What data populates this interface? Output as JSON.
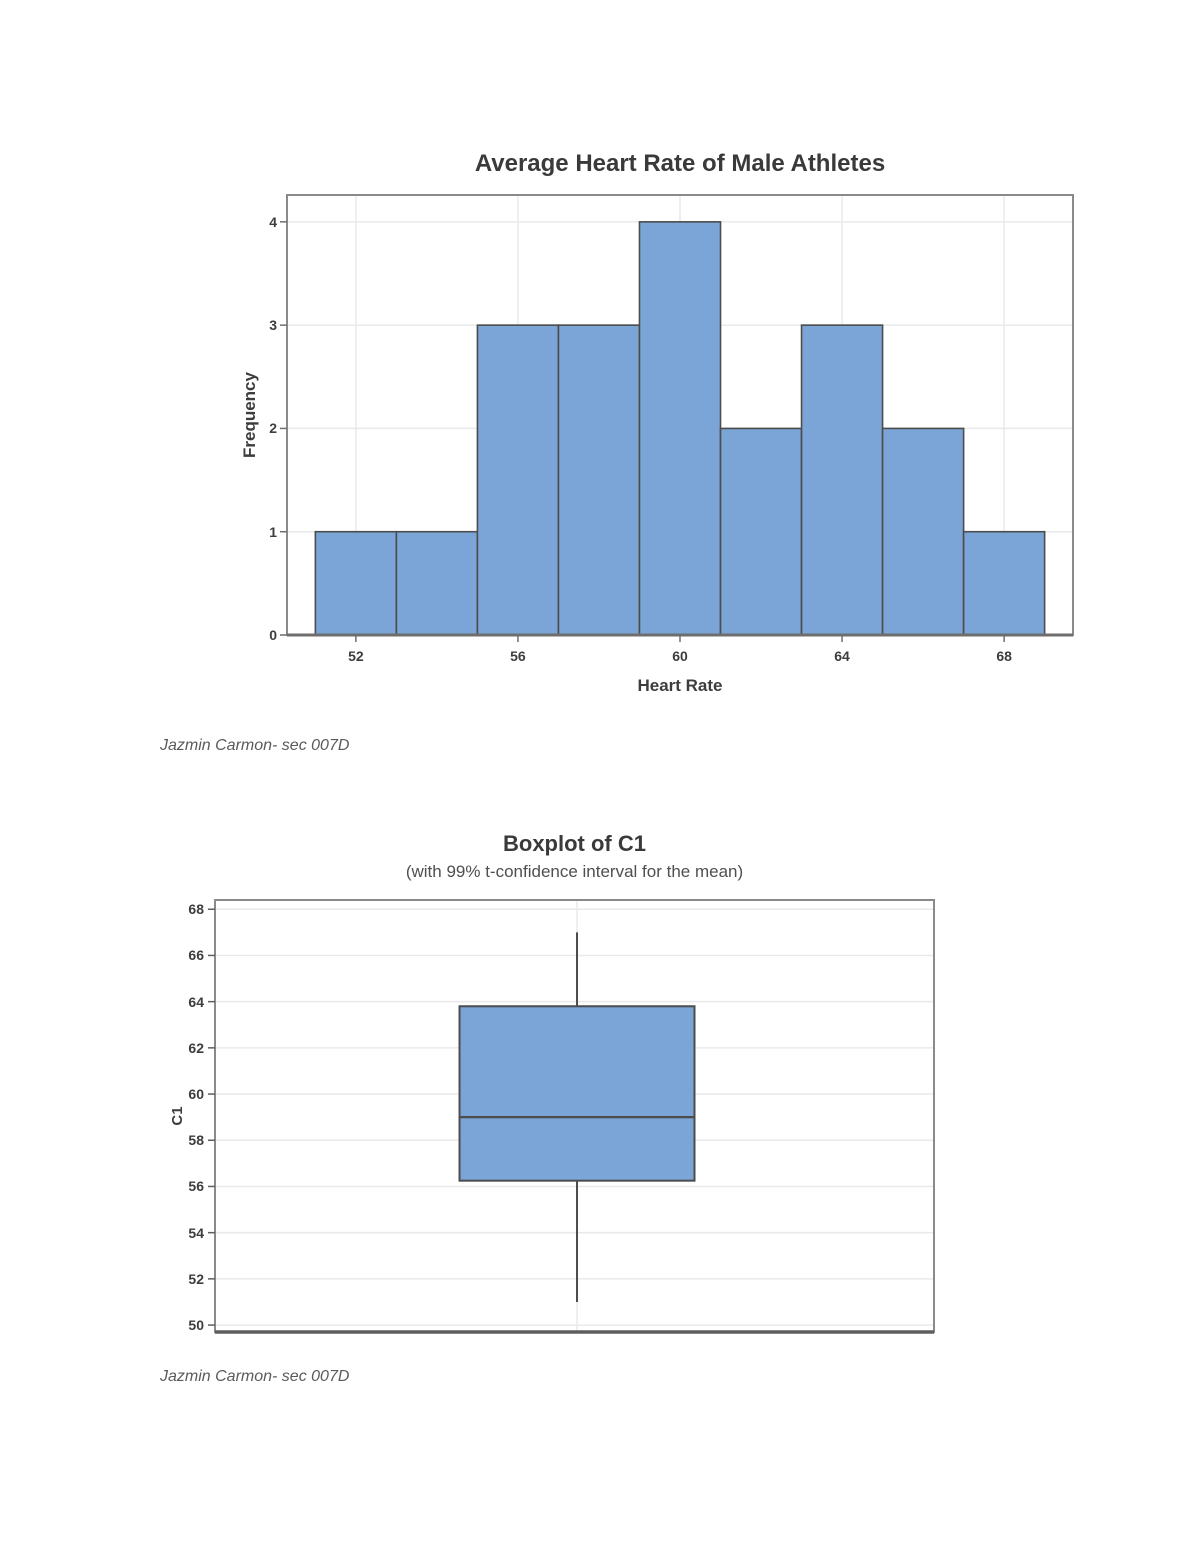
{
  "document": {
    "background": "#ffffff",
    "caption_first": "Jazmin Carmon- sec 007D",
    "caption_second": "Jazmin Carmon- sec 007D"
  },
  "chart_data": [
    {
      "type": "bar",
      "subtype": "histogram",
      "title": "Average Heart Rate of Male Athletes",
      "xlabel": "Heart Rate",
      "ylabel": "Frequency",
      "bin_width": 2,
      "bin_centers": [
        52,
        54,
        56,
        58,
        60,
        62,
        64,
        66,
        68
      ],
      "frequencies": [
        1,
        1,
        3,
        3,
        4,
        2,
        3,
        2,
        1
      ],
      "x_ticks": [
        52,
        56,
        60,
        64,
        68
      ],
      "y_ticks": [
        0,
        1,
        2,
        3,
        4
      ],
      "xlim": [
        50.3,
        69.7
      ],
      "ylim": [
        0,
        4.26
      ],
      "grid": true,
      "legend": false,
      "bar_fill": "#7BA4D7",
      "bar_stroke": "#4C4C4C",
      "grid_color": "#E9E9E9",
      "frame_color": "#8A8A8A",
      "axis_color": "#6E6E6E"
    },
    {
      "type": "boxplot",
      "title": "Boxplot of C1",
      "subtitle": "(with 99% t-confidence interval for the mean)",
      "ylabel": "C1",
      "y_ticks": [
        50,
        52,
        54,
        56,
        58,
        60,
        62,
        64,
        66,
        68
      ],
      "ylim": [
        49.7,
        68.4
      ],
      "box": {
        "whisker_low": 51,
        "q1": 56.25,
        "median": 59,
        "q3": 63.8,
        "whisker_high": 67
      },
      "grid": true,
      "legend": false,
      "box_center_frac": 0.5035,
      "box_width_frac": 0.3268,
      "box_fill": "#7BA4D7",
      "box_stroke": "#4C4C4C",
      "grid_color": "#E9E9E9",
      "frame_color": "#8A8A8A",
      "axis_color": "#5E5E5E"
    }
  ]
}
